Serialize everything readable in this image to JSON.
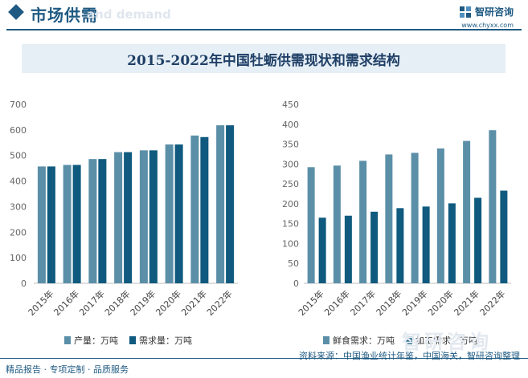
{
  "header": {
    "section_title": "市场供需",
    "ghost_text": "and demand",
    "brand_name": "智研咨询",
    "brand_url": "www.chyxx.com"
  },
  "title": "2015-2022年中国牡蛎供需现状和需求结构",
  "footer": {
    "left_text": "精品报告 · 专项定制 · 品质服务",
    "source_text": "资料来源：中国渔业统计年鉴，中国海关，智研咨询整理"
  },
  "watermark_text": "智研咨询",
  "colors": {
    "primary": "#5b8fa8",
    "secondary": "#0f5a7e",
    "brand": "#1f5a82"
  },
  "chart_data": [
    {
      "type": "bar",
      "categories": [
        "2015年",
        "2016年",
        "2017年",
        "2018年",
        "2019年",
        "2020年",
        "2021年",
        "2022年"
      ],
      "ylim": [
        0,
        700
      ],
      "yticks": [
        0,
        100,
        200,
        300,
        400,
        500,
        600,
        700
      ],
      "grid": false,
      "legend_position": "bottom",
      "series": [
        {
          "name": "产量：万吨",
          "values": [
            457,
            463,
            486,
            513,
            520,
            543,
            578,
            618
          ]
        },
        {
          "name": "需求量：万吨",
          "values": [
            457,
            463,
            486,
            513,
            520,
            543,
            572,
            618
          ]
        }
      ]
    },
    {
      "type": "bar",
      "categories": [
        "2015年",
        "2016年",
        "2017年",
        "2018年",
        "2019年",
        "2020年",
        "2021年",
        "2022年"
      ],
      "ylim": [
        0,
        450
      ],
      "yticks": [
        0,
        50,
        100,
        150,
        200,
        250,
        300,
        350,
        400,
        450
      ],
      "grid": false,
      "legend_position": "bottom",
      "series": [
        {
          "name": "鲜食需求：万吨",
          "values": [
            292,
            296,
            308,
            324,
            328,
            339,
            358,
            385
          ]
        },
        {
          "name": "加工需求：万吨",
          "values": [
            165,
            170,
            180,
            189,
            193,
            201,
            215,
            233
          ]
        }
      ]
    }
  ]
}
